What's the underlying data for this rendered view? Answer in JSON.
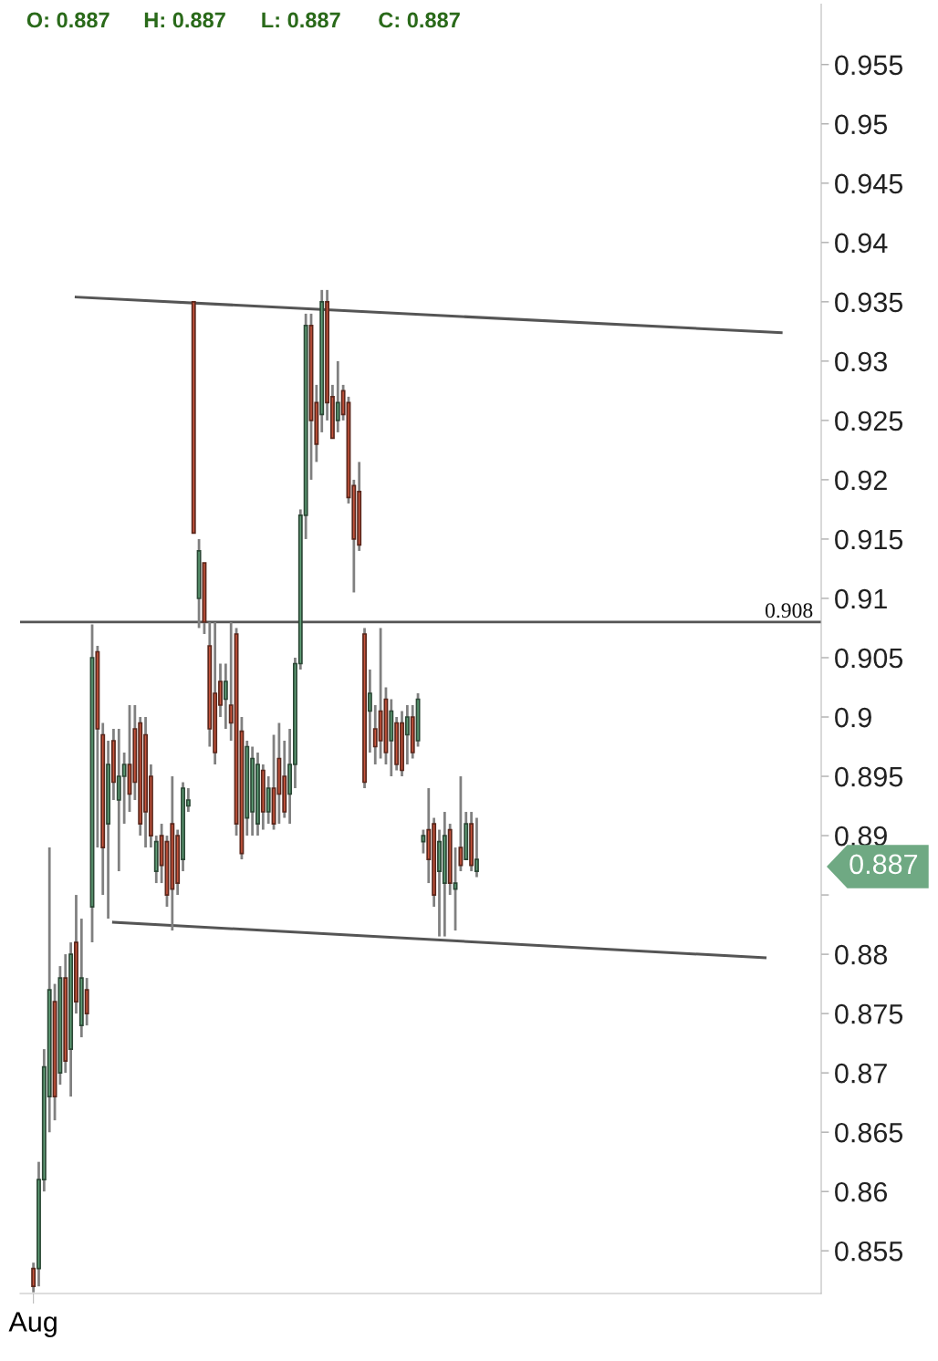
{
  "chart_data": {
    "type": "candlestick",
    "categories": [
      null,
      null,
      "Aug",
      null,
      null,
      null,
      null,
      null,
      null,
      null,
      null,
      null,
      null,
      null,
      null,
      null,
      null,
      null,
      null,
      null,
      null,
      null,
      null,
      null,
      null,
      null,
      null,
      null,
      null,
      null,
      null,
      null,
      null,
      null,
      null,
      null,
      null,
      null,
      null,
      null,
      null,
      null,
      null,
      null,
      null,
      null,
      null,
      null,
      null,
      null,
      null,
      null,
      null,
      null,
      null,
      null,
      null,
      null,
      null,
      null,
      null,
      null,
      null,
      null,
      null,
      null,
      null,
      null,
      null,
      null,
      null,
      null,
      null,
      null,
      null,
      null,
      null,
      null,
      null,
      null,
      null,
      null,
      null,
      null,
      null,
      null,
      null,
      null,
      null,
      null,
      null,
      null,
      null,
      null,
      null,
      null,
      null,
      null,
      null,
      null,
      null,
      null,
      null,
      null,
      null,
      null,
      null,
      null,
      null,
      null,
      null,
      null,
      null,
      null,
      null,
      null,
      null,
      null,
      null,
      null,
      null,
      null,
      null,
      null,
      null,
      null,
      null,
      null,
      null,
      null,
      null,
      null,
      null,
      null,
      null,
      null,
      null,
      null,
      null,
      null,
      null,
      null,
      null,
      null,
      null,
      null,
      null,
      null,
      null,
      null
    ],
    "ohlc": [
      null,
      null,
      [
        0.8535,
        0.854,
        0.8515,
        0.852
      ],
      [
        0.8535,
        0.8625,
        0.852,
        0.861
      ],
      [
        0.861,
        0.872,
        0.86,
        0.8705
      ],
      [
        0.868,
        0.889,
        0.865,
        0.877
      ],
      [
        0.876,
        0.8775,
        0.866,
        0.868
      ],
      [
        0.87,
        0.879,
        0.869,
        0.878
      ],
      [
        0.878,
        0.88,
        0.87,
        0.871
      ],
      [
        0.872,
        0.881,
        0.868,
        0.88
      ],
      [
        0.881,
        0.885,
        0.875,
        0.876
      ],
      [
        0.874,
        0.883,
        0.873,
        0.878
      ],
      [
        0.877,
        0.878,
        0.874,
        0.875
      ],
      [
        0.884,
        0.9078,
        0.881,
        0.905
      ],
      [
        0.9055,
        0.906,
        0.889,
        0.899
      ],
      [
        0.8985,
        0.8995,
        0.885,
        0.889
      ],
      [
        0.891,
        0.898,
        0.883,
        0.896
      ],
      [
        0.898,
        0.899,
        0.893,
        0.8945
      ],
      [
        0.893,
        0.899,
        0.887,
        0.895
      ],
      [
        0.895,
        0.897,
        0.891,
        0.896
      ],
      [
        0.896,
        0.901,
        0.892,
        0.8935
      ],
      [
        0.899,
        0.901,
        0.893,
        0.8945
      ],
      [
        0.8995,
        0.9,
        0.89,
        0.891
      ],
      [
        0.8985,
        0.9,
        0.889,
        0.892
      ],
      [
        0.895,
        0.896,
        0.889,
        0.89
      ],
      [
        0.887,
        0.89,
        0.886,
        0.8895
      ],
      [
        0.89,
        0.891,
        0.886,
        0.8875
      ],
      [
        0.8895,
        0.89,
        0.884,
        0.885
      ],
      [
        0.891,
        0.895,
        0.882,
        0.8855
      ],
      [
        0.89,
        0.8905,
        0.885,
        0.886
      ],
      [
        0.888,
        0.8945,
        0.887,
        0.894
      ],
      [
        0.8925,
        0.894,
        0.892,
        0.893
      ],
      [
        0.935,
        0.935,
        0.9155,
        0.9155
      ],
      [
        0.91,
        0.915,
        0.9075,
        0.914
      ],
      [
        0.913,
        0.913,
        0.907,
        0.908
      ],
      [
        0.906,
        0.908,
        0.8975,
        0.899
      ],
      [
        0.902,
        0.908,
        0.896,
        0.897
      ],
      [
        0.903,
        0.9045,
        0.9,
        0.901
      ],
      [
        0.9015,
        0.9045,
        0.899,
        0.903
      ],
      [
        0.901,
        0.908,
        0.898,
        0.8995
      ],
      [
        0.907,
        0.9075,
        0.89,
        0.891
      ],
      [
        0.8988,
        0.9,
        0.888,
        0.8885
      ],
      [
        0.8915,
        0.898,
        0.89,
        0.8975
      ],
      [
        0.892,
        0.8975,
        0.89,
        0.8965
      ],
      [
        0.891,
        0.897,
        0.89,
        0.896
      ],
      [
        0.8955,
        0.896,
        0.8905,
        0.892
      ],
      [
        0.892,
        0.895,
        0.891,
        0.894
      ],
      [
        0.894,
        0.8985,
        0.8905,
        0.891
      ],
      [
        0.8965,
        0.8995,
        0.891,
        0.8935
      ],
      [
        0.895,
        0.898,
        0.8915,
        0.892
      ],
      [
        0.8935,
        0.899,
        0.891,
        0.896
      ],
      [
        0.896,
        0.905,
        0.894,
        0.9045
      ],
      [
        0.9045,
        0.9175,
        0.904,
        0.917
      ],
      [
        0.917,
        0.934,
        0.915,
        0.933
      ],
      [
        0.933,
        0.934,
        0.92,
        0.925
      ],
      [
        0.9265,
        0.928,
        0.9215,
        0.923
      ],
      [
        0.9255,
        0.936,
        0.924,
        0.935
      ],
      [
        0.935,
        0.936,
        0.925,
        0.9265
      ],
      [
        0.927,
        0.928,
        0.9235,
        0.9235
      ],
      [
        0.925,
        0.93,
        0.924,
        0.9265
      ],
      [
        0.9275,
        0.928,
        0.925,
        0.9255
      ],
      [
        0.9265,
        0.927,
        0.918,
        0.9185
      ],
      [
        0.9195,
        0.92,
        0.9105,
        0.915
      ],
      [
        0.919,
        0.9215,
        0.914,
        0.9145
      ],
      [
        0.907,
        0.9075,
        0.894,
        0.8945
      ],
      [
        0.9005,
        0.904,
        0.897,
        0.902
      ],
      [
        0.899,
        0.901,
        0.896,
        0.8975
      ],
      [
        0.9005,
        0.9075,
        0.8965,
        0.898
      ],
      [
        0.9015,
        0.9025,
        0.896,
        0.897
      ],
      [
        0.898,
        0.9015,
        0.895,
        0.9005
      ],
      [
        0.8995,
        0.9,
        0.8955,
        0.896
      ],
      [
        0.8995,
        0.9005,
        0.895,
        0.8955
      ],
      [
        0.8985,
        0.901,
        0.896,
        0.9
      ],
      [
        0.9,
        0.901,
        0.8965,
        0.897
      ],
      [
        0.898,
        0.902,
        0.8975,
        0.9015
      ],
      [
        0.8895,
        0.8905,
        0.8885,
        0.89
      ],
      [
        0.8905,
        0.894,
        0.886,
        0.888
      ],
      [
        0.891,
        0.8915,
        0.884,
        0.885
      ],
      [
        0.887,
        0.8905,
        0.8815,
        0.8895
      ],
      [
        0.886,
        0.892,
        0.8815,
        0.89
      ],
      [
        0.8905,
        0.891,
        0.885,
        0.886
      ],
      [
        0.8855,
        0.889,
        0.882,
        0.886
      ],
      [
        0.889,
        0.895,
        0.887,
        0.8875
      ],
      [
        0.888,
        0.892,
        0.888,
        0.891
      ],
      [
        0.891,
        0.892,
        0.887,
        0.8875
      ],
      [
        0.887,
        0.8915,
        0.8865,
        0.888
      ],
      null,
      null,
      null,
      null,
      null,
      null,
      null,
      null,
      null,
      null,
      null,
      null,
      null,
      null,
      null,
      null,
      null,
      null,
      null,
      null,
      null,
      null,
      null,
      null,
      null,
      null,
      null,
      null,
      null,
      null,
      null,
      null,
      null,
      null,
      null,
      null,
      null,
      null,
      null,
      null,
      null,
      null,
      null,
      null,
      null,
      null,
      null,
      null,
      null,
      null,
      null,
      null,
      null,
      null,
      null,
      null,
      null,
      null,
      null,
      null,
      null,
      null,
      null,
      null
    ],
    "colors": [
      null,
      null,
      "#c8553d",
      "#5f9e76",
      "#5f9e76",
      "#5f9e76",
      "#c8553d",
      "#5f9e76",
      "#c8553d",
      "#5f9e76",
      "#c8553d",
      "#5f9e76",
      "#c8553d",
      "#5f9e76",
      "#c8553d",
      "#c8553d",
      "#5f9e76",
      "#c8553d",
      "#5f9e76",
      "#5f9e76",
      "#c8553d",
      "#c8553d",
      "#c8553d",
      "#c8553d",
      "#c8553d",
      "#5f9e76",
      "#c8553d",
      "#c8553d",
      "#c8553d",
      "#c8553d",
      "#5f9e76",
      "#5f9e76",
      "#c8553d",
      "#5f9e76",
      "#c8553d",
      "#c8553d",
      "#c8553d",
      "#c8553d",
      "#5f9e76",
      "#c8553d",
      "#c8553d",
      "#c8553d",
      "#5f9e76",
      "#5f9e76",
      "#5f9e76",
      "#c8553d",
      "#5f9e76",
      "#c8553d",
      "#c8553d",
      "#c8553d",
      "#5f9e76",
      "#5f9e76",
      "#5f9e76",
      "#5f9e76",
      "#c8553d",
      "#c8553d",
      "#5f9e76",
      "#c8553d",
      "#c8553d",
      "#5f9e76",
      "#c8553d",
      "#c8553d",
      "#c8553d",
      "#c8553d",
      "#c8553d",
      "#5f9e76",
      "#c8553d",
      "#c8553d",
      "#c8553d",
      "#5f9e76",
      "#c8553d",
      "#c8553d",
      "#5f9e76",
      "#c8553d",
      "#5f9e76",
      "#5f9e76",
      "#c8553d",
      "#c8553d",
      "#5f9e76",
      "#5f9e76",
      "#c8553d",
      "#5f9e76",
      "#c8553d",
      "#5f9e76",
      "#c8553d",
      "#5f9e76",
      null,
      null,
      null,
      null,
      null,
      null,
      null,
      null,
      null,
      null,
      null,
      null,
      null,
      null,
      null,
      null,
      null,
      null,
      null,
      null,
      null,
      null,
      null,
      null,
      null,
      null,
      null,
      null,
      null,
      null,
      null,
      null,
      null,
      null,
      null,
      null,
      null,
      null,
      null,
      null,
      null,
      null,
      null,
      null,
      null,
      null,
      null,
      null,
      null,
      null,
      null,
      null,
      null,
      null,
      null,
      null,
      null,
      null,
      null,
      null,
      null,
      null,
      null,
      null
    ],
    "series": [
      {
        "type": "line",
        "color": "#555555",
        "values": [
          null,
          null,
          null,
          null,
          null,
          null,
          null,
          null,
          null,
          null,
          0.9354,
          null,
          null,
          null,
          null,
          null,
          null,
          null,
          null,
          null,
          null,
          null,
          null,
          null,
          null,
          null,
          null,
          null,
          null,
          null,
          null,
          null,
          null,
          null,
          null,
          null,
          null,
          null,
          null,
          null,
          null,
          null,
          null,
          null,
          null,
          null,
          null,
          null,
          null,
          null,
          null,
          null,
          null,
          null,
          null,
          null,
          null,
          null,
          null,
          null,
          null,
          null,
          null,
          null,
          null,
          null,
          null,
          null,
          null,
          null,
          null,
          null,
          null,
          null,
          null,
          null,
          null,
          null,
          null,
          null,
          null,
          null,
          null,
          null,
          null,
          null,
          null,
          null,
          null,
          null,
          null,
          null,
          null,
          null,
          null,
          null,
          null,
          null,
          null,
          null,
          null,
          null,
          null,
          null,
          null,
          null,
          null,
          null,
          null,
          null,
          null,
          null,
          null,
          null,
          null,
          null,
          null,
          null,
          null,
          null,
          null,
          null,
          null,
          null,
          null,
          null,
          null,
          null,
          null,
          null,
          null,
          null,
          null,
          null,
          null,
          null,
          null,
          null,
          null,
          null,
          null,
          null,
          0.9324,
          null,
          null,
          null,
          null,
          null,
          null,
          null
        ]
      },
      {
        "type": "line",
        "color": "#555555",
        "values": [
          null,
          null,
          null,
          null,
          null,
          null,
          null,
          null,
          null,
          null,
          null,
          null,
          null,
          null,
          null,
          null,
          null,
          0.8827,
          null,
          null,
          null,
          null,
          null,
          null,
          null,
          null,
          null,
          null,
          null,
          null,
          null,
          null,
          null,
          null,
          null,
          null,
          null,
          null,
          null,
          null,
          null,
          null,
          null,
          null,
          null,
          null,
          null,
          null,
          null,
          null,
          null,
          null,
          null,
          null,
          null,
          null,
          null,
          null,
          null,
          null,
          null,
          null,
          null,
          null,
          null,
          null,
          null,
          null,
          null,
          null,
          null,
          null,
          null,
          null,
          null,
          null,
          null,
          null,
          null,
          null,
          null,
          null,
          null,
          null,
          null,
          null,
          null,
          null,
          null,
          null,
          null,
          null,
          null,
          null,
          null,
          null,
          null,
          null,
          null,
          null,
          null,
          null,
          null,
          null,
          null,
          null,
          null,
          null,
          null,
          null,
          null,
          null,
          null,
          null,
          null,
          null,
          null,
          null,
          null,
          null,
          null,
          null,
          null,
          null,
          null,
          null,
          null,
          null,
          null,
          null,
          null,
          null,
          null,
          null,
          null,
          null,
          null,
          null,
          null,
          0.8797,
          null,
          null,
          null,
          null,
          null,
          null,
          null,
          null,
          null,
          null
        ]
      }
    ],
    "ylim": [
      0.8514,
      0.9601
    ],
    "yticks": [
      0.855,
      0.86,
      0.865,
      0.87,
      0.875,
      0.88,
      {
        "value": 0.885,
        "label": null
      },
      0.89,
      0.895,
      0.9,
      0.905,
      0.91,
      0.915,
      0.92,
      0.925,
      0.93,
      0.935,
      0.94,
      0.945,
      0.95,
      0.955
    ],
    "ref_lines": [
      {
        "axis": "y",
        "value": 0.908,
        "label": "0.908",
        "color": "#555555"
      }
    ],
    "annotations": [
      "O: 0.887",
      "H: 0.887",
      "L: 0.887",
      "C: 0.887",
      "0.887"
    ],
    "grid": false
  }
}
